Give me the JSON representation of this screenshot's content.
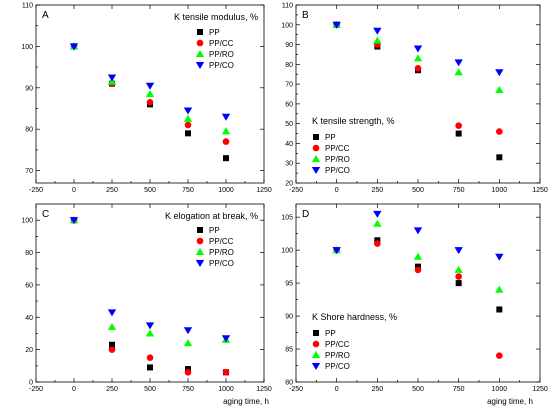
{
  "xlabel": "aging time, h",
  "series_styles": [
    {
      "name": "PP",
      "color": "#000000",
      "marker": "square"
    },
    {
      "name": "PP/CC",
      "color": "#ff0000",
      "marker": "circle"
    },
    {
      "name": "PP/RO",
      "color": "#00ff00",
      "marker": "triangle-up"
    },
    {
      "name": "PP/CO",
      "color": "#0000ff",
      "marker": "triangle-down"
    }
  ],
  "chart_data": [
    {
      "type": "scatter",
      "panel": "A",
      "title": "K tensile modulus, %",
      "legend_position": "top-right",
      "xlim": [
        -250,
        1250
      ],
      "ylim": [
        67,
        110
      ],
      "xticks": [
        -250,
        0,
        250,
        500,
        750,
        1000,
        1250
      ],
      "yticks": [
        70,
        80,
        90,
        100,
        110
      ],
      "x": [
        0,
        250,
        500,
        750,
        1000
      ],
      "series": [
        {
          "name": "PP",
          "values": [
            100,
            91,
            86,
            79,
            73
          ]
        },
        {
          "name": "PP/CC",
          "values": [
            100,
            91,
            86.5,
            81,
            77
          ]
        },
        {
          "name": "PP/RO",
          "values": [
            100,
            91.5,
            88.5,
            82.5,
            79.5
          ]
        },
        {
          "name": "PP/CO",
          "values": [
            100,
            92.5,
            90.5,
            84.5,
            83
          ]
        }
      ]
    },
    {
      "type": "scatter",
      "panel": "B",
      "title": "K tensile strength, %",
      "legend_position": "bottom-left",
      "xlim": [
        -250,
        1250
      ],
      "ylim": [
        20,
        110
      ],
      "xticks": [
        -250,
        0,
        250,
        500,
        750,
        1000,
        1250
      ],
      "yticks": [
        20,
        30,
        40,
        50,
        60,
        70,
        80,
        90,
        100,
        110
      ],
      "x": [
        0,
        250,
        500,
        750,
        1000
      ],
      "series": [
        {
          "name": "PP",
          "values": [
            100,
            89,
            77,
            45,
            33
          ]
        },
        {
          "name": "PP/CC",
          "values": [
            100,
            90,
            78,
            49,
            46
          ]
        },
        {
          "name": "PP/RO",
          "values": [
            100,
            92,
            83,
            76,
            67
          ]
        },
        {
          "name": "PP/CO",
          "values": [
            100,
            97,
            88,
            81,
            76
          ]
        }
      ]
    },
    {
      "type": "scatter",
      "panel": "C",
      "title": "K elogation at break, %",
      "legend_position": "top-right",
      "xlim": [
        -250,
        1250
      ],
      "ylim": [
        0,
        110
      ],
      "xticks": [
        -250,
        0,
        250,
        500,
        750,
        1000,
        1250
      ],
      "yticks": [
        0,
        20,
        40,
        60,
        80,
        100
      ],
      "x": [
        0,
        250,
        500,
        750,
        1000
      ],
      "series": [
        {
          "name": "PP",
          "values": [
            100,
            23,
            9,
            8,
            6
          ]
        },
        {
          "name": "PP/CC",
          "values": [
            100,
            20,
            15,
            6,
            6
          ]
        },
        {
          "name": "PP/RO",
          "values": [
            100,
            34,
            30,
            24,
            26
          ]
        },
        {
          "name": "PP/CO",
          "values": [
            100,
            43,
            35,
            32,
            27
          ]
        }
      ]
    },
    {
      "type": "scatter",
      "panel": "D",
      "title": "K Shore hardness, %",
      "legend_position": "bottom-left",
      "xlim": [
        -250,
        1250
      ],
      "ylim": [
        80,
        107
      ],
      "xticks": [
        -250,
        0,
        250,
        500,
        750,
        1000,
        1250
      ],
      "yticks": [
        80,
        85,
        90,
        95,
        100,
        105
      ],
      "x": [
        0,
        250,
        500,
        750,
        1000
      ],
      "series": [
        {
          "name": "PP",
          "values": [
            100,
            101.5,
            97.5,
            95,
            91
          ]
        },
        {
          "name": "PP/CC",
          "values": [
            100,
            101,
            97,
            96,
            84
          ]
        },
        {
          "name": "PP/RO",
          "values": [
            100,
            104,
            99,
            97,
            94
          ]
        },
        {
          "name": "PP/CO",
          "values": [
            100,
            105.5,
            103,
            100,
            99
          ]
        }
      ]
    }
  ]
}
